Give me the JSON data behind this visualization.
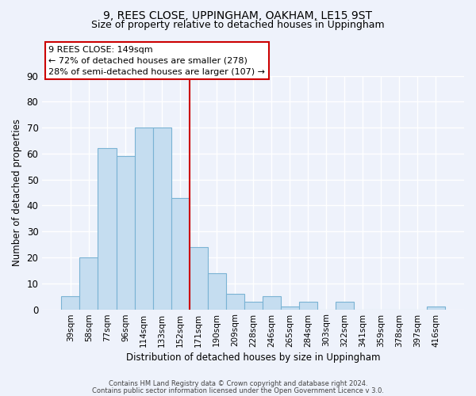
{
  "title": "9, REES CLOSE, UPPINGHAM, OAKHAM, LE15 9ST",
  "subtitle": "Size of property relative to detached houses in Uppingham",
  "xlabel": "Distribution of detached houses by size in Uppingham",
  "ylabel": "Number of detached properties",
  "bar_color": "#c5ddf0",
  "bar_edge_color": "#7ab3d4",
  "background_color": "#eef2fb",
  "grid_color": "white",
  "categories": [
    "39sqm",
    "58sqm",
    "77sqm",
    "96sqm",
    "114sqm",
    "133sqm",
    "152sqm",
    "171sqm",
    "190sqm",
    "209sqm",
    "228sqm",
    "246sqm",
    "265sqm",
    "284sqm",
    "303sqm",
    "322sqm",
    "341sqm",
    "359sqm",
    "378sqm",
    "397sqm",
    "416sqm"
  ],
  "values": [
    5,
    20,
    62,
    59,
    70,
    70,
    43,
    24,
    14,
    6,
    3,
    5,
    1,
    3,
    0,
    3,
    0,
    0,
    0,
    0,
    1
  ],
  "vline_index": 6,
  "vline_color": "#cc0000",
  "annotation_line1": "9 REES CLOSE: 149sqm",
  "annotation_line2": "← 72% of detached houses are smaller (278)",
  "annotation_line3": "28% of semi-detached houses are larger (107) →",
  "ylim": [
    0,
    90
  ],
  "yticks": [
    0,
    10,
    20,
    30,
    40,
    50,
    60,
    70,
    80,
    90
  ],
  "footer_line1": "Contains HM Land Registry data © Crown copyright and database right 2024.",
  "footer_line2": "Contains public sector information licensed under the Open Government Licence v 3.0."
}
